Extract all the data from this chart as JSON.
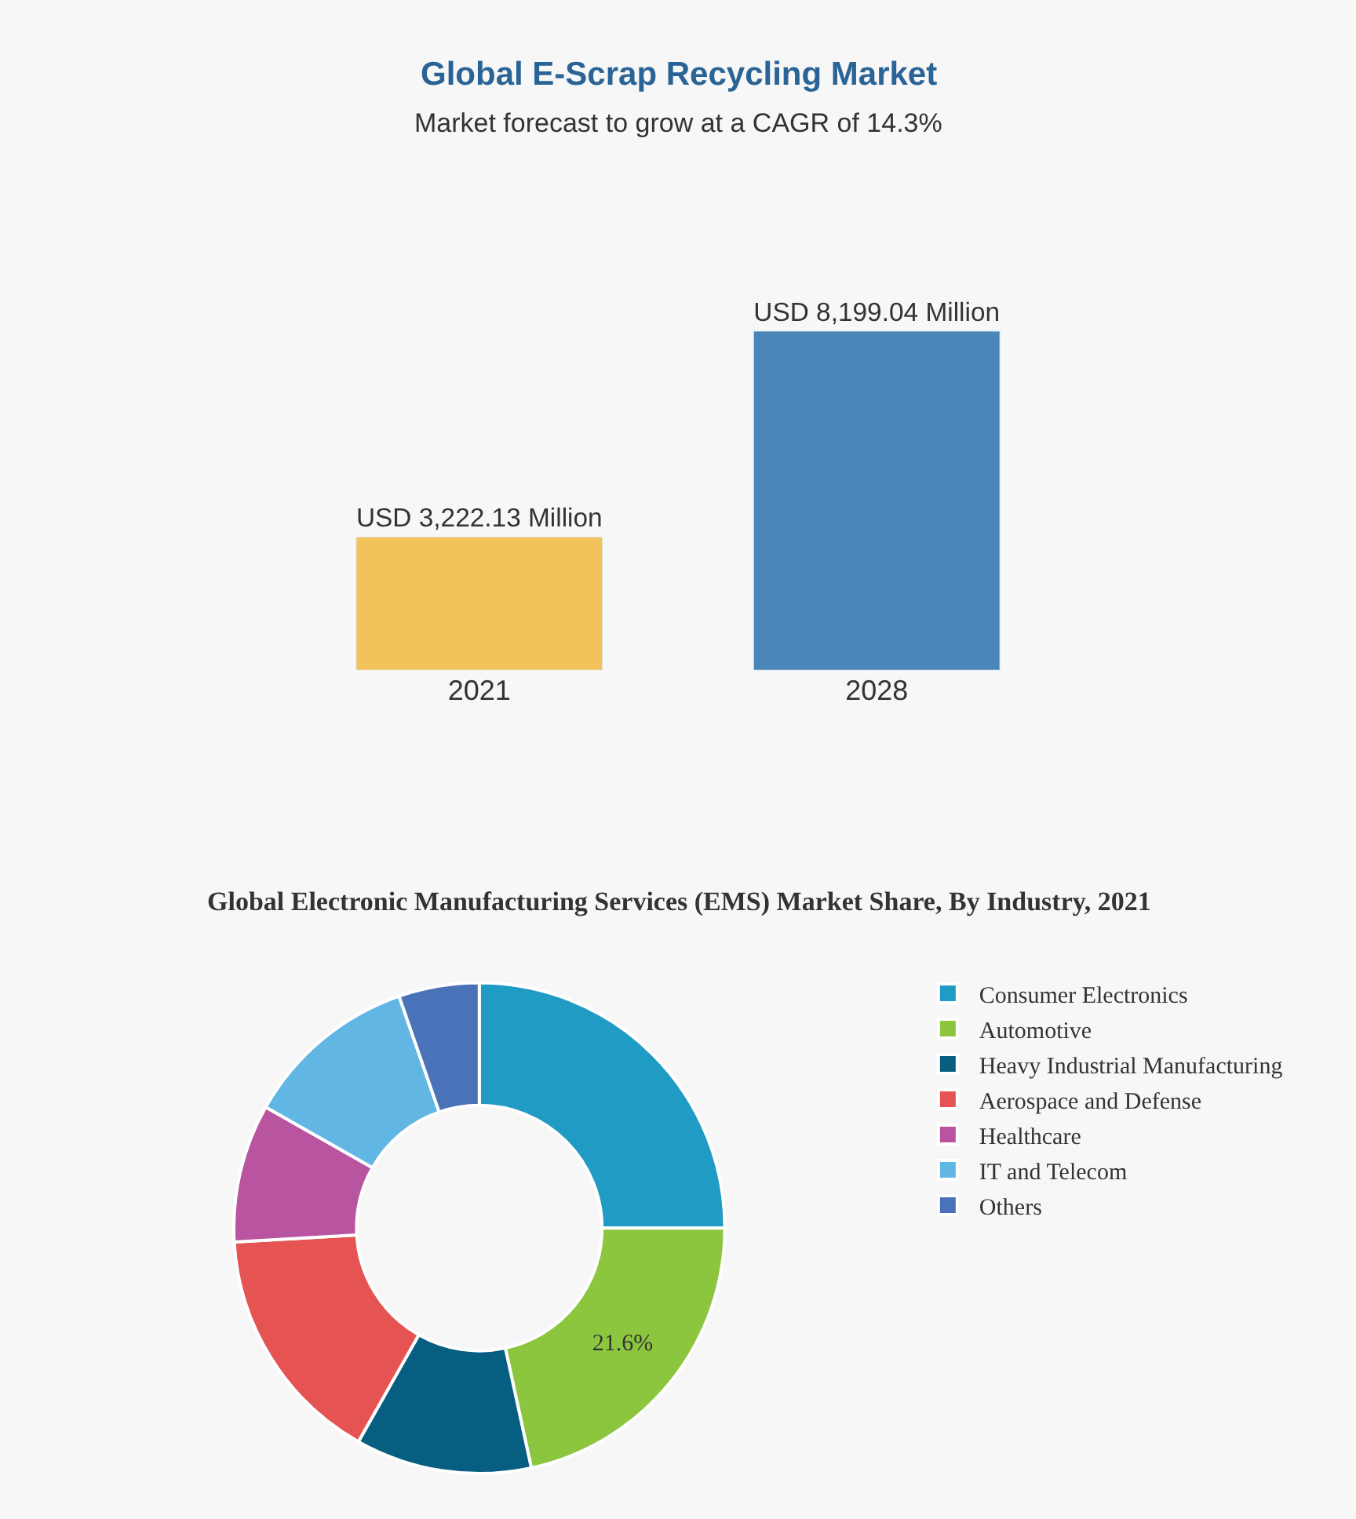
{
  "chart_data": [
    {
      "type": "bar",
      "title": "Global E-Scrap Recycling Market",
      "subtitle": "Market forecast to grow at a CAGR of 14.3%",
      "categories": [
        "2021",
        "2028"
      ],
      "values": [
        3222.13,
        8199.04
      ],
      "colors": [
        "#f2c35a",
        "#4a86b8"
      ],
      "value_labels": [
        "USD 3,222.13 Million",
        "USD 8,199.04 Million"
      ],
      "grid": false,
      "legend": false,
      "tick_labels": "x"
    },
    {
      "type": "donut",
      "title": "Global Electronic Manufacturing Services (EMS) Market Share, By Industry, 2021",
      "categories": [
        "Consumer Electronics",
        "Automotive",
        "Heavy Industrial Manufacturing",
        "Aerospace and Defense",
        "Healthcare",
        "IT and Telecom",
        "Others"
      ],
      "values": [
        25.0,
        21.6,
        11.6,
        15.9,
        9.1,
        11.5,
        5.3
      ],
      "colors": [
        "#1f9bc4",
        "#8cc63f",
        "#065e80",
        "#e55353",
        "#b955a0",
        "#62b6e4",
        "#4a72b8"
      ],
      "value_labels": [
        null,
        "21.6%",
        null,
        null,
        null,
        null,
        null
      ],
      "legend": "right"
    }
  ]
}
